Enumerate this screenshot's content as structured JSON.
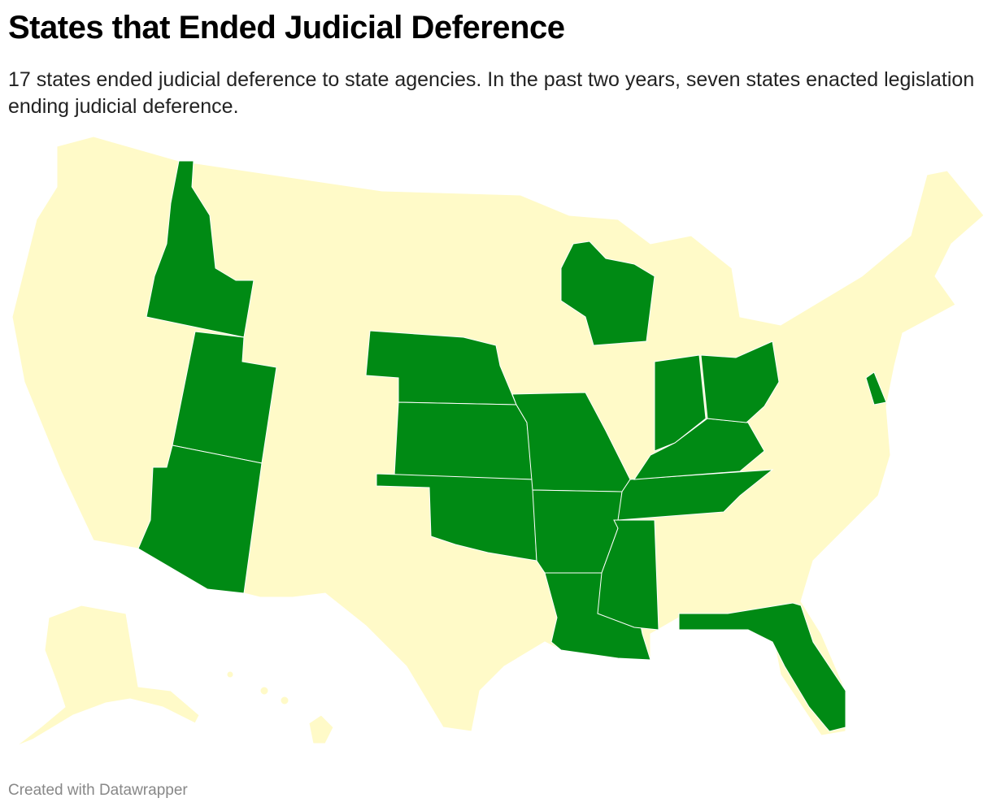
{
  "header": {
    "title": "States that Ended Judicial Deference",
    "description": "17 states ended judicial deference to state agencies. In the past two years, seven states enacted legislation ending judicial deference."
  },
  "footer": {
    "credit": "Created with Datawrapper"
  }
}
